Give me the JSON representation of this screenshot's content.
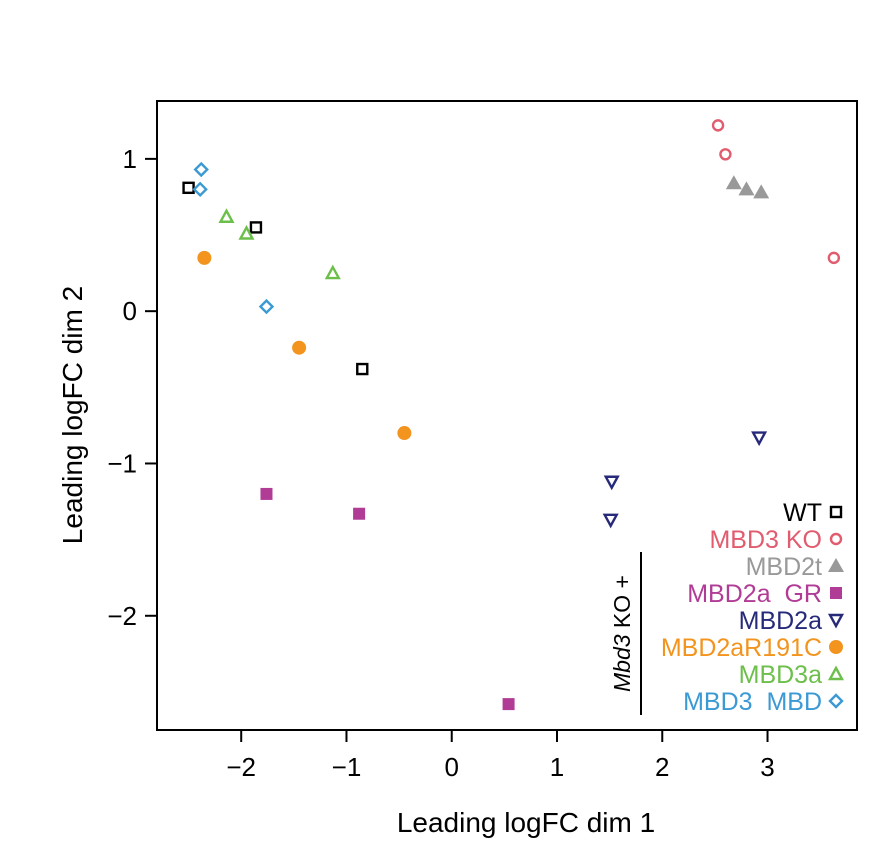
{
  "chart_data": {
    "type": "scatter",
    "xlabel": "Leading logFC dim 1",
    "ylabel": "Leading logFC dim 2",
    "xlim": [
      -2.8,
      3.85
    ],
    "ylim": [
      -2.75,
      1.38
    ],
    "x_ticks": [
      {
        "value": -2,
        "label": "−2"
      },
      {
        "value": -1,
        "label": "−1"
      },
      {
        "value": 0,
        "label": "0"
      },
      {
        "value": 1,
        "label": "1"
      },
      {
        "value": 2,
        "label": "2"
      },
      {
        "value": 3,
        "label": "3"
      }
    ],
    "y_ticks": [
      {
        "value": 1,
        "label": "1"
      },
      {
        "value": 0,
        "label": "0"
      },
      {
        "value": -1,
        "label": "−1"
      },
      {
        "value": -2,
        "label": "−2"
      }
    ],
    "grid": false,
    "legend_position": "bottom-right",
    "legend_group_label": {
      "italic": "Mbd3",
      "rest": " KO +"
    },
    "series": [
      {
        "name": "WT",
        "color": "#000000",
        "marker": "square-open",
        "points": [
          [
            -2.5,
            0.81
          ],
          [
            -1.86,
            0.55
          ],
          [
            -0.85,
            -0.38
          ]
        ]
      },
      {
        "name": "MBD3 KO",
        "color": "#e05c6e",
        "marker": "circle-open",
        "points": [
          [
            2.53,
            1.22
          ],
          [
            2.6,
            1.03
          ],
          [
            3.63,
            0.35
          ]
        ]
      },
      {
        "name": "MBD2t",
        "color": "#999999",
        "marker": "triangle-filled",
        "points": [
          [
            2.68,
            0.84
          ],
          [
            2.8,
            0.8
          ],
          [
            2.94,
            0.78
          ]
        ]
      },
      {
        "name": "MBD2a  GR",
        "color": "#b03c96",
        "marker": "square-filled",
        "points": [
          [
            -1.76,
            -1.2
          ],
          [
            -0.88,
            -1.33
          ],
          [
            0.54,
            -2.58
          ]
        ]
      },
      {
        "name": "MBD2a",
        "color": "#262a79",
        "marker": "triangle-down-open",
        "points": [
          [
            1.52,
            -1.12
          ],
          [
            1.51,
            -1.37
          ],
          [
            2.92,
            -0.83
          ]
        ]
      },
      {
        "name": "MBD2aR191C",
        "color": "#f2941e",
        "marker": "circle-filled",
        "points": [
          [
            -2.35,
            0.35
          ],
          [
            -1.45,
            -0.24
          ],
          [
            -0.45,
            -0.8
          ]
        ]
      },
      {
        "name": "MBD3a",
        "color": "#6cbf4b",
        "marker": "triangle-open",
        "points": [
          [
            -2.14,
            0.62
          ],
          [
            -1.95,
            0.51
          ],
          [
            -1.13,
            0.25
          ]
        ]
      },
      {
        "name": "MBD3  MBD",
        "color": "#3b99d4",
        "marker": "diamond-open",
        "points": [
          [
            -2.38,
            0.93
          ],
          [
            -2.39,
            0.8
          ],
          [
            -1.76,
            0.03
          ]
        ]
      }
    ]
  }
}
